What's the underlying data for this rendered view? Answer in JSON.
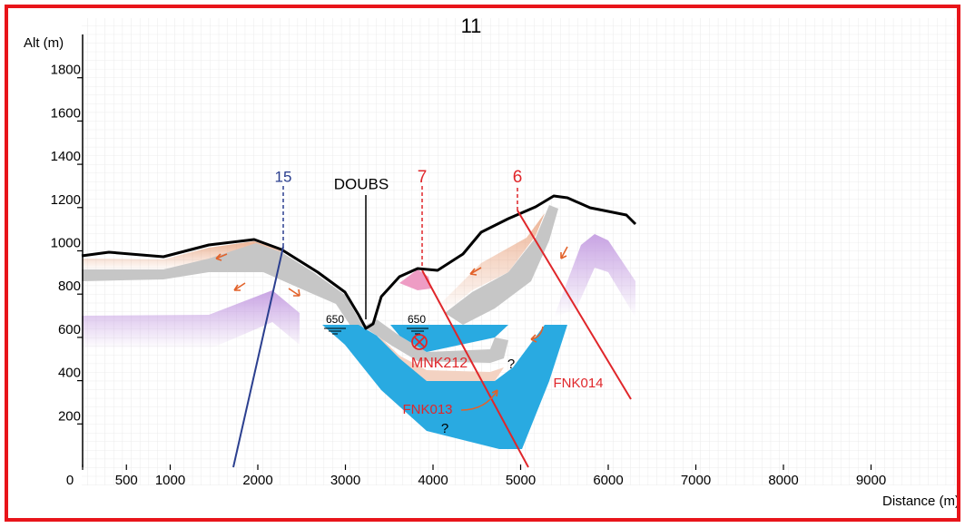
{
  "title": "11",
  "y_axis": {
    "label": "Alt (m)",
    "ticks": [
      1800,
      1600,
      1400,
      1200,
      1000,
      800,
      600,
      400,
      200
    ]
  },
  "x_axis": {
    "label": "Distance (m)",
    "ticks": [
      0,
      500,
      1000,
      2000,
      3000,
      4000,
      5000,
      6000,
      7000,
      8000,
      9000
    ]
  },
  "profiles": {
    "well_15": "15",
    "river": "DOUBS",
    "well_7": "7",
    "well_6": "6"
  },
  "water_levels": [
    "650",
    "650"
  ],
  "labels": {
    "mnk212": "MNK212",
    "fnk013": "FNK013",
    "fnk014": "FNK014"
  },
  "unknowns": [
    "?",
    "?"
  ]
}
